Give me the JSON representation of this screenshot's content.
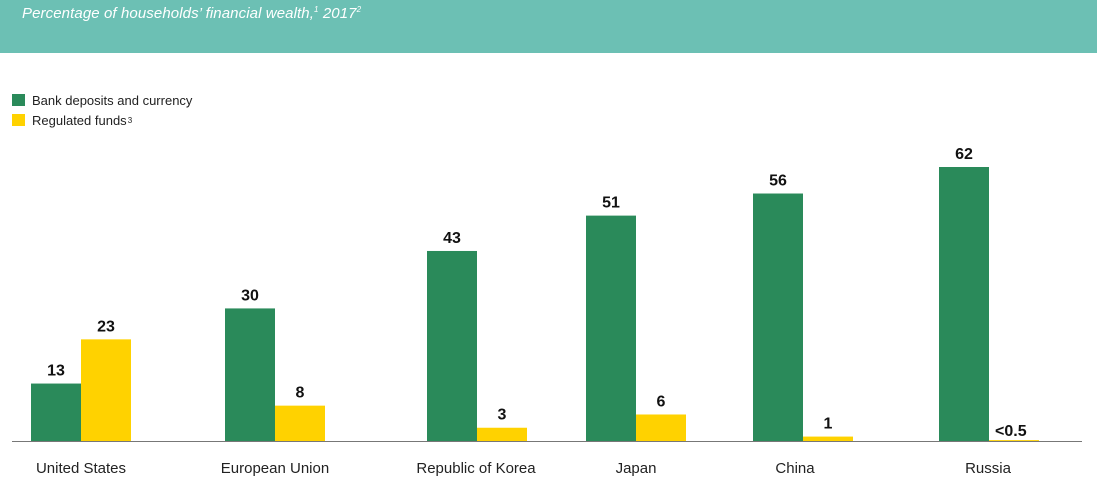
{
  "header": {
    "subtitle_text": "Percentage of households’ financial wealth,",
    "subtitle_sup1": "1",
    "subtitle_year": " 2017",
    "subtitle_sup2": "2",
    "color": "#6cc0b4"
  },
  "legend": {
    "items": [
      {
        "label": "Bank deposits and currency",
        "sup": "",
        "color": "#2a8a5a"
      },
      {
        "label": "Regulated funds",
        "sup": "3",
        "color": "#ffd200"
      }
    ]
  },
  "chart_data": {
    "type": "bar",
    "categories": [
      "United States",
      "European Union",
      "Republic of Korea",
      "Japan",
      "China",
      "Russia"
    ],
    "series": [
      {
        "name": "Bank deposits and currency",
        "color": "#2a8a5a",
        "values": [
          13,
          30,
          43,
          51,
          56,
          62
        ],
        "labels": [
          "13",
          "30",
          "43",
          "51",
          "56",
          "62"
        ]
      },
      {
        "name": "Regulated funds",
        "color": "#ffd200",
        "values": [
          23,
          8,
          3,
          6,
          1,
          0.2
        ],
        "labels": [
          "23",
          "8",
          "3",
          "6",
          "1",
          "<0.5"
        ]
      }
    ],
    "ylim": [
      0,
      62
    ],
    "grid": false,
    "legend_position": "top-left"
  }
}
